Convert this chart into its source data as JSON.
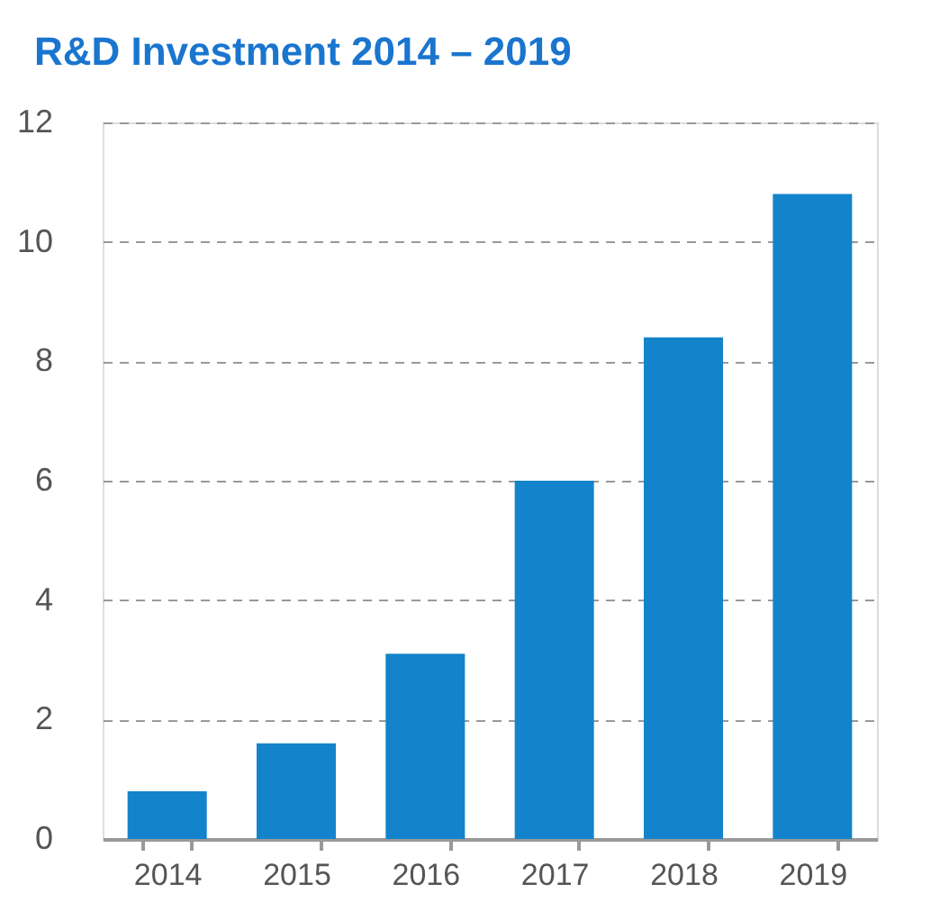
{
  "chart_data": {
    "type": "bar",
    "title": "R&D Investment 2014 – 2019",
    "categories": [
      "2014",
      "2015",
      "2016",
      "2017",
      "2018",
      "2019"
    ],
    "values": [
      0.8,
      1.6,
      3.1,
      6.0,
      8.4,
      10.8
    ],
    "color": "#1384cb",
    "ylim": [
      0,
      12
    ],
    "yticks": [
      0,
      2,
      4,
      6,
      8,
      10,
      12
    ],
    "grid": "y"
  }
}
